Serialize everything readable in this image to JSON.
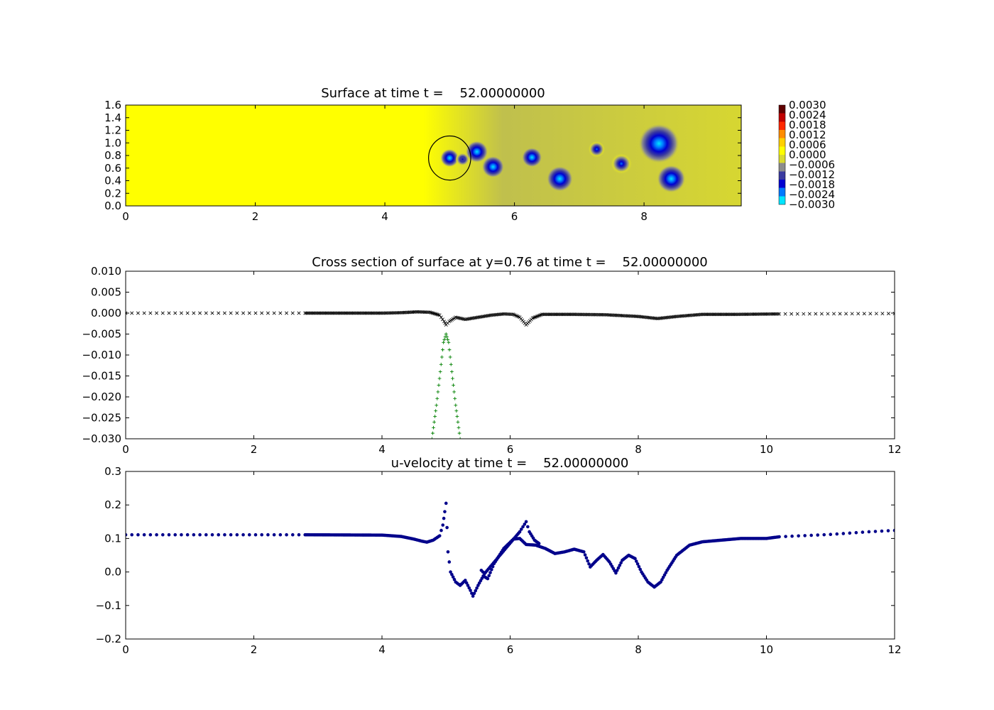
{
  "chart_data": [
    {
      "type": "heatmap",
      "title": "Surface at time t =    52.00000000",
      "xlim": [
        0,
        9.5
      ],
      "ylim": [
        0,
        1.6
      ],
      "xticks": [
        "0",
        "2",
        "4",
        "6",
        "8"
      ],
      "yticks": [
        "0.0",
        "0.2",
        "0.4",
        "0.6",
        "0.8",
        "1.0",
        "1.2",
        "1.4",
        "1.6"
      ],
      "colorbar": {
        "range": [
          -0.003,
          0.003
        ],
        "ticks": [
          "0.0030",
          "0.0024",
          "0.0018",
          "0.0012",
          "0.0006",
          "0.0000",
          "−0.0006",
          "−0.0012",
          "−0.0018",
          "−0.0024",
          "−0.0030"
        ],
        "colors": [
          "#00e5ff",
          "#0078ff",
          "#0000d0",
          "#3a3aa0",
          "#8c8c8c",
          "#dada30",
          "#ffff00",
          "#ffd000",
          "#ff8c00",
          "#ff2800",
          "#c00000",
          "#600000"
        ]
      },
      "background_level": 0.0,
      "dark_region_x_from": 4.6,
      "dark_region_level": -0.0006,
      "depressions": [
        {
          "x": 5.0,
          "y": 0.76,
          "depth": -0.003,
          "radius": 0.09
        },
        {
          "x": 5.2,
          "y": 0.74,
          "depth": -0.0018,
          "radius": 0.07
        },
        {
          "x": 5.42,
          "y": 0.86,
          "depth": -0.003,
          "radius": 0.11
        },
        {
          "x": 5.67,
          "y": 0.62,
          "depth": -0.003,
          "radius": 0.11
        },
        {
          "x": 6.27,
          "y": 0.77,
          "depth": -0.0028,
          "radius": 0.1
        },
        {
          "x": 6.7,
          "y": 0.43,
          "depth": -0.003,
          "radius": 0.13
        },
        {
          "x": 7.27,
          "y": 0.9,
          "depth": -0.0022,
          "radius": 0.08
        },
        {
          "x": 7.65,
          "y": 0.67,
          "depth": -0.0025,
          "radius": 0.1
        },
        {
          "x": 8.23,
          "y": 0.99,
          "depth": -0.003,
          "radius": 0.2
        },
        {
          "x": 8.42,
          "y": 0.43,
          "depth": -0.003,
          "radius": 0.14
        }
      ],
      "circle": {
        "cx": 5.0,
        "cy": 0.76,
        "r": 0.35
      }
    },
    {
      "type": "scatter",
      "title": "Cross section of surface at y=0.76 at time t =    52.00000000",
      "xlim": [
        0,
        12
      ],
      "ylim": [
        -0.03,
        0.01
      ],
      "xticks": [
        "0",
        "2",
        "4",
        "6",
        "8",
        "10",
        "12"
      ],
      "yticks": [
        "0.010",
        "0.005",
        "0.000",
        "−0.005",
        "−0.010",
        "−0.015",
        "−0.020",
        "−0.025",
        "−0.030"
      ],
      "series": [
        {
          "marker": "x",
          "color": "#000000",
          "points": [
            [
              0,
              0.0
            ],
            [
              2.8,
              0.0
            ],
            [
              4.0,
              0.0
            ],
            [
              4.3,
              0.0001
            ],
            [
              4.55,
              0.0003
            ],
            [
              4.75,
              0.0002
            ],
            [
              4.9,
              -0.0005
            ],
            [
              4.97,
              -0.002
            ],
            [
              5.0,
              -0.0028
            ],
            [
              5.05,
              -0.002
            ],
            [
              5.15,
              -0.001
            ],
            [
              5.3,
              -0.0015
            ],
            [
              5.5,
              -0.001
            ],
            [
              5.7,
              -0.0005
            ],
            [
              5.9,
              -0.0002
            ],
            [
              6.05,
              -0.0003
            ],
            [
              6.15,
              -0.001
            ],
            [
              6.25,
              -0.0028
            ],
            [
              6.35,
              -0.0012
            ],
            [
              6.5,
              -0.0003
            ],
            [
              7.0,
              -0.0003
            ],
            [
              7.5,
              -0.0004
            ],
            [
              8.0,
              -0.0008
            ],
            [
              8.3,
              -0.0013
            ],
            [
              8.6,
              -0.0008
            ],
            [
              9.0,
              -0.0003
            ],
            [
              9.5,
              -0.0003
            ],
            [
              10.2,
              -0.0002
            ],
            [
              12.0,
              -0.0001
            ]
          ]
        },
        {
          "marker": "+",
          "color": "#008000",
          "points": [
            [
              4.78,
              -0.03
            ],
            [
              4.85,
              -0.022
            ],
            [
              4.91,
              -0.014
            ],
            [
              4.96,
              -0.007
            ],
            [
              5.0,
              -0.005
            ],
            [
              5.04,
              -0.007
            ],
            [
              5.09,
              -0.014
            ],
            [
              5.15,
              -0.022
            ],
            [
              5.22,
              -0.03
            ]
          ]
        }
      ]
    },
    {
      "type": "scatter",
      "title": "u-velocity at time t =    52.00000000",
      "xlim": [
        0,
        12
      ],
      "ylim": [
        -0.2,
        0.3
      ],
      "xticks": [
        "0",
        "2",
        "4",
        "6",
        "8",
        "10",
        "12"
      ],
      "yticks": [
        "0.3",
        "0.2",
        "0.1",
        "0.0",
        "−0.1",
        "−0.2"
      ],
      "series": [
        {
          "marker": "o",
          "color": "#00008b",
          "points": [
            [
              0,
              0.111
            ],
            [
              2.8,
              0.111
            ],
            [
              4.0,
              0.11
            ],
            [
              4.3,
              0.106
            ],
            [
              4.5,
              0.098
            ],
            [
              4.62,
              0.092
            ],
            [
              4.7,
              0.089
            ],
            [
              4.8,
              0.095
            ],
            [
              4.9,
              0.108
            ],
            [
              4.95,
              0.14
            ],
            [
              4.98,
              0.18
            ],
            [
              5.0,
              0.205
            ],
            [
              5.03,
              0.06
            ],
            [
              5.07,
              0.0
            ],
            [
              5.15,
              -0.03
            ],
            [
              5.22,
              -0.04
            ],
            [
              5.3,
              -0.025
            ],
            [
              5.38,
              -0.055
            ],
            [
              5.42,
              -0.072
            ],
            [
              5.5,
              -0.04
            ],
            [
              5.58,
              -0.012
            ],
            [
              5.65,
              -0.02
            ],
            [
              5.75,
              0.025
            ],
            [
              5.9,
              0.07
            ],
            [
              6.05,
              0.098
            ],
            [
              6.15,
              0.1
            ],
            [
              6.25,
              0.082
            ],
            [
              6.4,
              0.08
            ],
            [
              6.55,
              0.07
            ],
            [
              6.7,
              0.055
            ],
            [
              6.85,
              0.06
            ],
            [
              7.0,
              0.068
            ],
            [
              7.15,
              0.06
            ],
            [
              7.25,
              0.015
            ],
            [
              7.35,
              0.035
            ],
            [
              7.45,
              0.052
            ],
            [
              7.55,
              0.03
            ],
            [
              7.65,
              -0.003
            ],
            [
              7.75,
              0.035
            ],
            [
              7.85,
              0.05
            ],
            [
              7.95,
              0.04
            ],
            [
              8.05,
              0.0
            ],
            [
              8.15,
              -0.03
            ],
            [
              8.25,
              -0.045
            ],
            [
              8.35,
              -0.03
            ],
            [
              8.45,
              0.005
            ],
            [
              8.6,
              0.05
            ],
            [
              8.8,
              0.08
            ],
            [
              9.0,
              0.09
            ],
            [
              9.3,
              0.095
            ],
            [
              9.6,
              0.1
            ],
            [
              10.0,
              0.1
            ],
            [
              10.2,
              0.105
            ],
            [
              11.0,
              0.112
            ],
            [
              11.6,
              0.12
            ],
            [
              12.0,
              0.124
            ]
          ]
        },
        {
          "marker": "o",
          "color": "#00008b",
          "points": [
            [
              5.55,
              0.005
            ],
            [
              5.6,
              -0.005
            ],
            [
              6.15,
              0.12
            ],
            [
              6.2,
              0.135
            ],
            [
              6.25,
              0.15
            ],
            [
              6.3,
              0.12
            ],
            [
              6.38,
              0.095
            ],
            [
              6.45,
              0.085
            ]
          ]
        }
      ]
    }
  ]
}
